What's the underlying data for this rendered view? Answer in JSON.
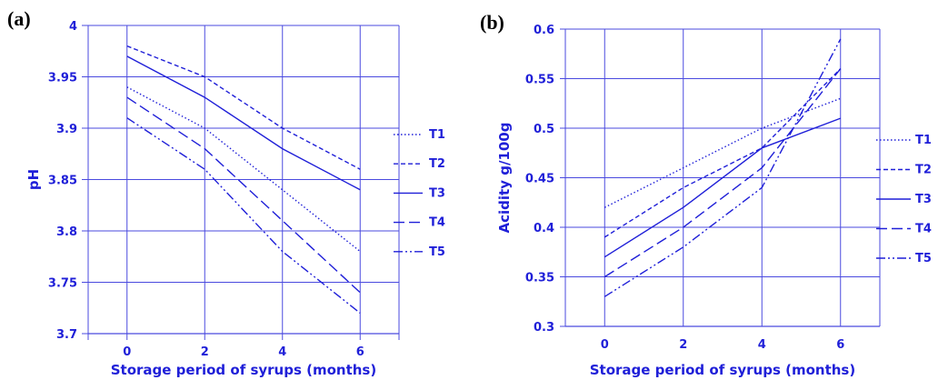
{
  "colors": {
    "ink": "#1f1fd8",
    "grid": "#4a4adf"
  },
  "chart_data": [
    {
      "panel": "(a)",
      "type": "line",
      "xlabel": "Storage period of syrups (months)",
      "ylabel": "pH",
      "x": [
        0,
        2,
        4,
        6
      ],
      "x_tick_labels": [
        "0",
        "2",
        "4",
        "6"
      ],
      "xlim": [
        -1,
        7
      ],
      "ylim": [
        3.7,
        4.0
      ],
      "y_ticks": [
        3.7,
        3.75,
        3.8,
        3.85,
        3.9,
        3.95,
        4.0
      ],
      "y_tick_labels": [
        "3.7",
        "3.75",
        "3.8",
        "3.85",
        "3.9",
        "3.95",
        "4"
      ],
      "grid": true,
      "legend_position": "right",
      "series": [
        {
          "name": "T1",
          "style": "dotted",
          "values": [
            3.94,
            3.9,
            3.84,
            3.78
          ]
        },
        {
          "name": "T2",
          "style": "short-dash",
          "values": [
            3.98,
            3.95,
            3.9,
            3.86
          ]
        },
        {
          "name": "T3",
          "style": "solid",
          "values": [
            3.97,
            3.93,
            3.88,
            3.84
          ]
        },
        {
          "name": "T4",
          "style": "long-dash",
          "values": [
            3.93,
            3.88,
            3.81,
            3.74
          ]
        },
        {
          "name": "T5",
          "style": "dash-dot-dot",
          "values": [
            3.91,
            3.86,
            3.78,
            3.72
          ]
        }
      ]
    },
    {
      "panel": "(b)",
      "type": "line",
      "xlabel": "Storage period of syrups (months)",
      "ylabel": "Acidity g/100g",
      "x": [
        0,
        2,
        4,
        6
      ],
      "x_tick_labels": [
        "0",
        "2",
        "4",
        "6"
      ],
      "xlim": [
        -1,
        7
      ],
      "ylim": [
        0.3,
        0.6
      ],
      "y_ticks": [
        0.3,
        0.35,
        0.4,
        0.45,
        0.5,
        0.55,
        0.6
      ],
      "y_tick_labels": [
        "0.3",
        "0.35",
        "0.4",
        "0.45",
        "0.5",
        "0.55",
        "0.6"
      ],
      "grid": true,
      "legend_position": "right",
      "series": [
        {
          "name": "T1",
          "style": "dotted",
          "values": [
            0.42,
            0.46,
            0.5,
            0.53
          ]
        },
        {
          "name": "T2",
          "style": "short-dash",
          "values": [
            0.39,
            0.44,
            0.48,
            0.56
          ]
        },
        {
          "name": "T3",
          "style": "solid",
          "values": [
            0.37,
            0.42,
            0.48,
            0.51
          ]
        },
        {
          "name": "T4",
          "style": "long-dash",
          "values": [
            0.35,
            0.4,
            0.46,
            0.56
          ]
        },
        {
          "name": "T5",
          "style": "dash-dot-dot",
          "values": [
            0.33,
            0.38,
            0.44,
            0.59
          ]
        }
      ]
    }
  ]
}
